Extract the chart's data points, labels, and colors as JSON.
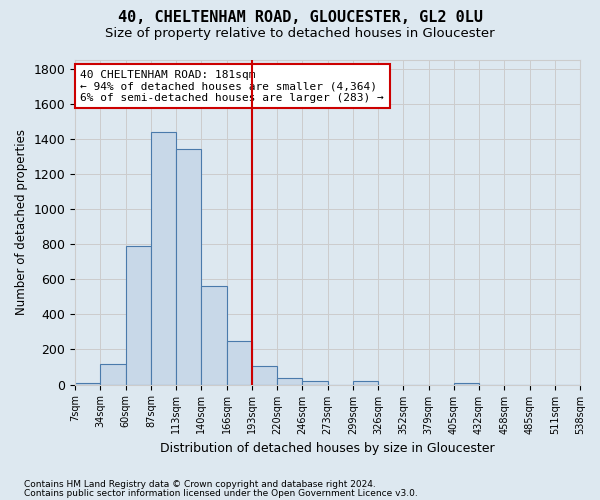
{
  "title": "40, CHELTENHAM ROAD, GLOUCESTER, GL2 0LU",
  "subtitle": "Size of property relative to detached houses in Gloucester",
  "xlabel": "Distribution of detached houses by size in Gloucester",
  "ylabel": "Number of detached properties",
  "bin_labels": [
    "7sqm",
    "34sqm",
    "60sqm",
    "87sqm",
    "113sqm",
    "140sqm",
    "166sqm",
    "193sqm",
    "220sqm",
    "246sqm",
    "273sqm",
    "299sqm",
    "326sqm",
    "352sqm",
    "379sqm",
    "405sqm",
    "432sqm",
    "458sqm",
    "485sqm",
    "511sqm",
    "538sqm"
  ],
  "bar_heights": [
    10,
    120,
    790,
    1440,
    1340,
    560,
    250,
    105,
    35,
    20,
    0,
    20,
    0,
    0,
    0,
    10,
    0,
    0,
    0,
    0
  ],
  "bar_color": "#c8d8e8",
  "bar_edge_color": "#4a7aab",
  "grid_color": "#cccccc",
  "vline_x": 6.5,
  "vline_color": "#cc0000",
  "annotation_text": "40 CHELTENHAM ROAD: 181sqm\n← 94% of detached houses are smaller (4,364)\n6% of semi-detached houses are larger (283) →",
  "annotation_box_color": "#ffffff",
  "annotation_box_edge": "#cc0000",
  "footnote1": "Contains HM Land Registry data © Crown copyright and database right 2024.",
  "footnote2": "Contains public sector information licensed under the Open Government Licence v3.0.",
  "ylim": [
    0,
    1850
  ],
  "yticks": [
    0,
    200,
    400,
    600,
    800,
    1000,
    1200,
    1400,
    1600,
    1800
  ],
  "bg_color": "#dde8f0"
}
